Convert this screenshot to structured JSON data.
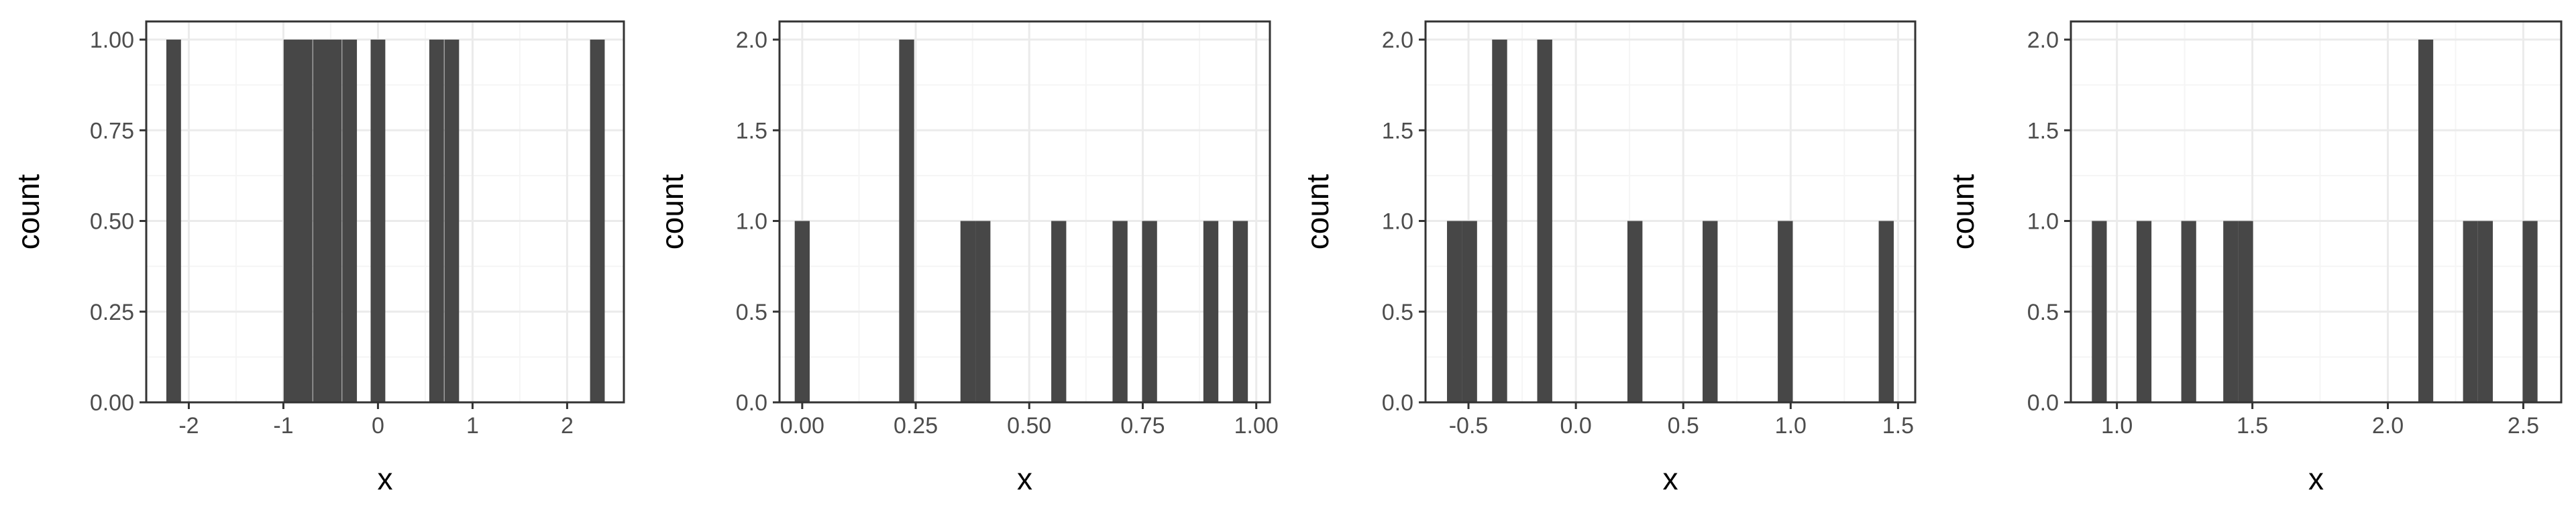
{
  "colors": {
    "bar_fill": "#474747",
    "panel_border": "#333333",
    "grid_major": "#ebebeb",
    "grid_minor": "#f5f5f5",
    "tick_text": "#4d4d4d",
    "title_text": "#000000"
  },
  "chart_data": [
    {
      "type": "bar",
      "xlabel": "x",
      "ylabel": "count",
      "xlim": [
        -2.45,
        2.6
      ],
      "ylim": [
        0,
        1.05
      ],
      "x_ticks": [
        -2,
        -1,
        0,
        1,
        2
      ],
      "x_tick_labels": [
        "-2",
        "-1",
        "0",
        "1",
        "2"
      ],
      "y_ticks": [
        0,
        0.25,
        0.5,
        0.75,
        1.0
      ],
      "y_tick_labels": [
        "0.00",
        "0.25",
        "0.50",
        "0.75",
        "1.00"
      ],
      "grid": true,
      "bin_width": 0.155,
      "bins": [
        {
          "x": -2.16,
          "count": 1
        },
        {
          "x": -0.92,
          "count": 1
        },
        {
          "x": -0.77,
          "count": 1
        },
        {
          "x": -0.61,
          "count": 1
        },
        {
          "x": -0.46,
          "count": 1
        },
        {
          "x": -0.3,
          "count": 1
        },
        {
          "x": 0.0,
          "count": 1
        },
        {
          "x": 0.62,
          "count": 1
        },
        {
          "x": 0.78,
          "count": 1
        },
        {
          "x": 2.32,
          "count": 1
        }
      ]
    },
    {
      "type": "bar",
      "xlabel": "x",
      "ylabel": "count",
      "xlim": [
        -0.05,
        1.03
      ],
      "ylim": [
        0,
        2.1
      ],
      "x_ticks": [
        0,
        0.25,
        0.5,
        0.75,
        1.0
      ],
      "x_tick_labels": [
        "0.00",
        "0.25",
        "0.50",
        "0.75",
        "1.00"
      ],
      "y_ticks": [
        0,
        0.5,
        1.0,
        1.5,
        2.0
      ],
      "y_tick_labels": [
        "0.0",
        "0.5",
        "1.0",
        "1.5",
        "2.0"
      ],
      "grid": true,
      "bin_width": 0.033,
      "bins": [
        {
          "x": 0.0,
          "count": 1
        },
        {
          "x": 0.23,
          "count": 2
        },
        {
          "x": 0.365,
          "count": 1
        },
        {
          "x": 0.398,
          "count": 1
        },
        {
          "x": 0.565,
          "count": 1
        },
        {
          "x": 0.7,
          "count": 1
        },
        {
          "x": 0.765,
          "count": 1
        },
        {
          "x": 0.9,
          "count": 1
        },
        {
          "x": 0.965,
          "count": 1
        }
      ]
    },
    {
      "type": "bar",
      "xlabel": "x",
      "ylabel": "count",
      "xlim": [
        -0.7,
        1.58
      ],
      "ylim": [
        0,
        2.1
      ],
      "x_ticks": [
        -0.5,
        0.0,
        0.5,
        1.0,
        1.5
      ],
      "x_tick_labels": [
        "-0.5",
        "0.0",
        "0.5",
        "1.0",
        "1.5"
      ],
      "y_ticks": [
        0,
        0.5,
        1.0,
        1.5,
        2.0
      ],
      "y_tick_labels": [
        "0.0",
        "0.5",
        "1.0",
        "1.5",
        "2.0"
      ],
      "grid": true,
      "bin_width": 0.07,
      "bins": [
        {
          "x": -0.565,
          "count": 1
        },
        {
          "x": -0.495,
          "count": 1
        },
        {
          "x": -0.355,
          "count": 2
        },
        {
          "x": -0.145,
          "count": 2
        },
        {
          "x": 0.275,
          "count": 1
        },
        {
          "x": 0.625,
          "count": 1
        },
        {
          "x": 0.975,
          "count": 1
        },
        {
          "x": 1.445,
          "count": 1
        }
      ]
    },
    {
      "type": "bar",
      "xlabel": "x",
      "ylabel": "count",
      "xlim": [
        0.83,
        2.64
      ],
      "ylim": [
        0,
        2.1
      ],
      "x_ticks": [
        1.0,
        1.5,
        2.0,
        2.5
      ],
      "x_tick_labels": [
        "1.0",
        "1.5",
        "2.0",
        "2.5"
      ],
      "y_ticks": [
        0,
        0.5,
        1.0,
        1.5,
        2.0
      ],
      "y_tick_labels": [
        "0.0",
        "0.5",
        "1.0",
        "1.5",
        "2.0"
      ],
      "grid": true,
      "bin_width": 0.055,
      "bins": [
        {
          "x": 0.935,
          "count": 1
        },
        {
          "x": 1.1,
          "count": 1
        },
        {
          "x": 1.265,
          "count": 1
        },
        {
          "x": 1.42,
          "count": 1
        },
        {
          "x": 1.475,
          "count": 1
        },
        {
          "x": 2.14,
          "count": 2
        },
        {
          "x": 2.305,
          "count": 1
        },
        {
          "x": 2.36,
          "count": 1
        },
        {
          "x": 2.525,
          "count": 1
        }
      ]
    }
  ]
}
